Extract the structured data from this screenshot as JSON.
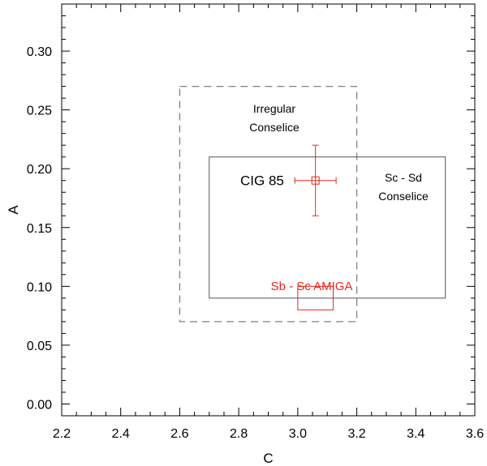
{
  "chart_data": {
    "type": "scatter",
    "title": "",
    "xlabel": "C",
    "ylabel": "A",
    "xlim": [
      2.2,
      3.6
    ],
    "ylim": [
      -0.01,
      0.34
    ],
    "grid": false,
    "x_ticks": [
      "2.2",
      "2.4",
      "2.6",
      "2.8",
      "3.0",
      "3.2",
      "3.4",
      "3.6"
    ],
    "y_ticks": [
      "0.00",
      "0.05",
      "0.10",
      "0.15",
      "0.20",
      "0.25",
      "0.30"
    ],
    "regions": [
      {
        "name": "irregular",
        "label_lines": [
          "Irregular",
          "Conselice"
        ],
        "x": [
          2.6,
          3.2
        ],
        "y": [
          0.07,
          0.27
        ],
        "style": "dashed",
        "color": "#808080"
      },
      {
        "name": "sc-sd",
        "label_lines": [
          "Sc - Sd",
          "Conselice"
        ],
        "x": [
          2.7,
          3.5
        ],
        "y": [
          0.09,
          0.21
        ],
        "style": "solid",
        "color": "#555555"
      },
      {
        "name": "sb-sc-amiga",
        "label_lines": [
          "Sb - Sc AMIGA"
        ],
        "x": [
          3.0,
          3.12
        ],
        "y": [
          0.08,
          0.1
        ],
        "style": "solid",
        "color": "#e8281f"
      }
    ],
    "points": [
      {
        "name": "CIG 85",
        "label": "CIG 85",
        "x": 3.06,
        "y": 0.19,
        "x_err": 0.07,
        "y_err": 0.03,
        "color": "#e8281f"
      }
    ]
  }
}
